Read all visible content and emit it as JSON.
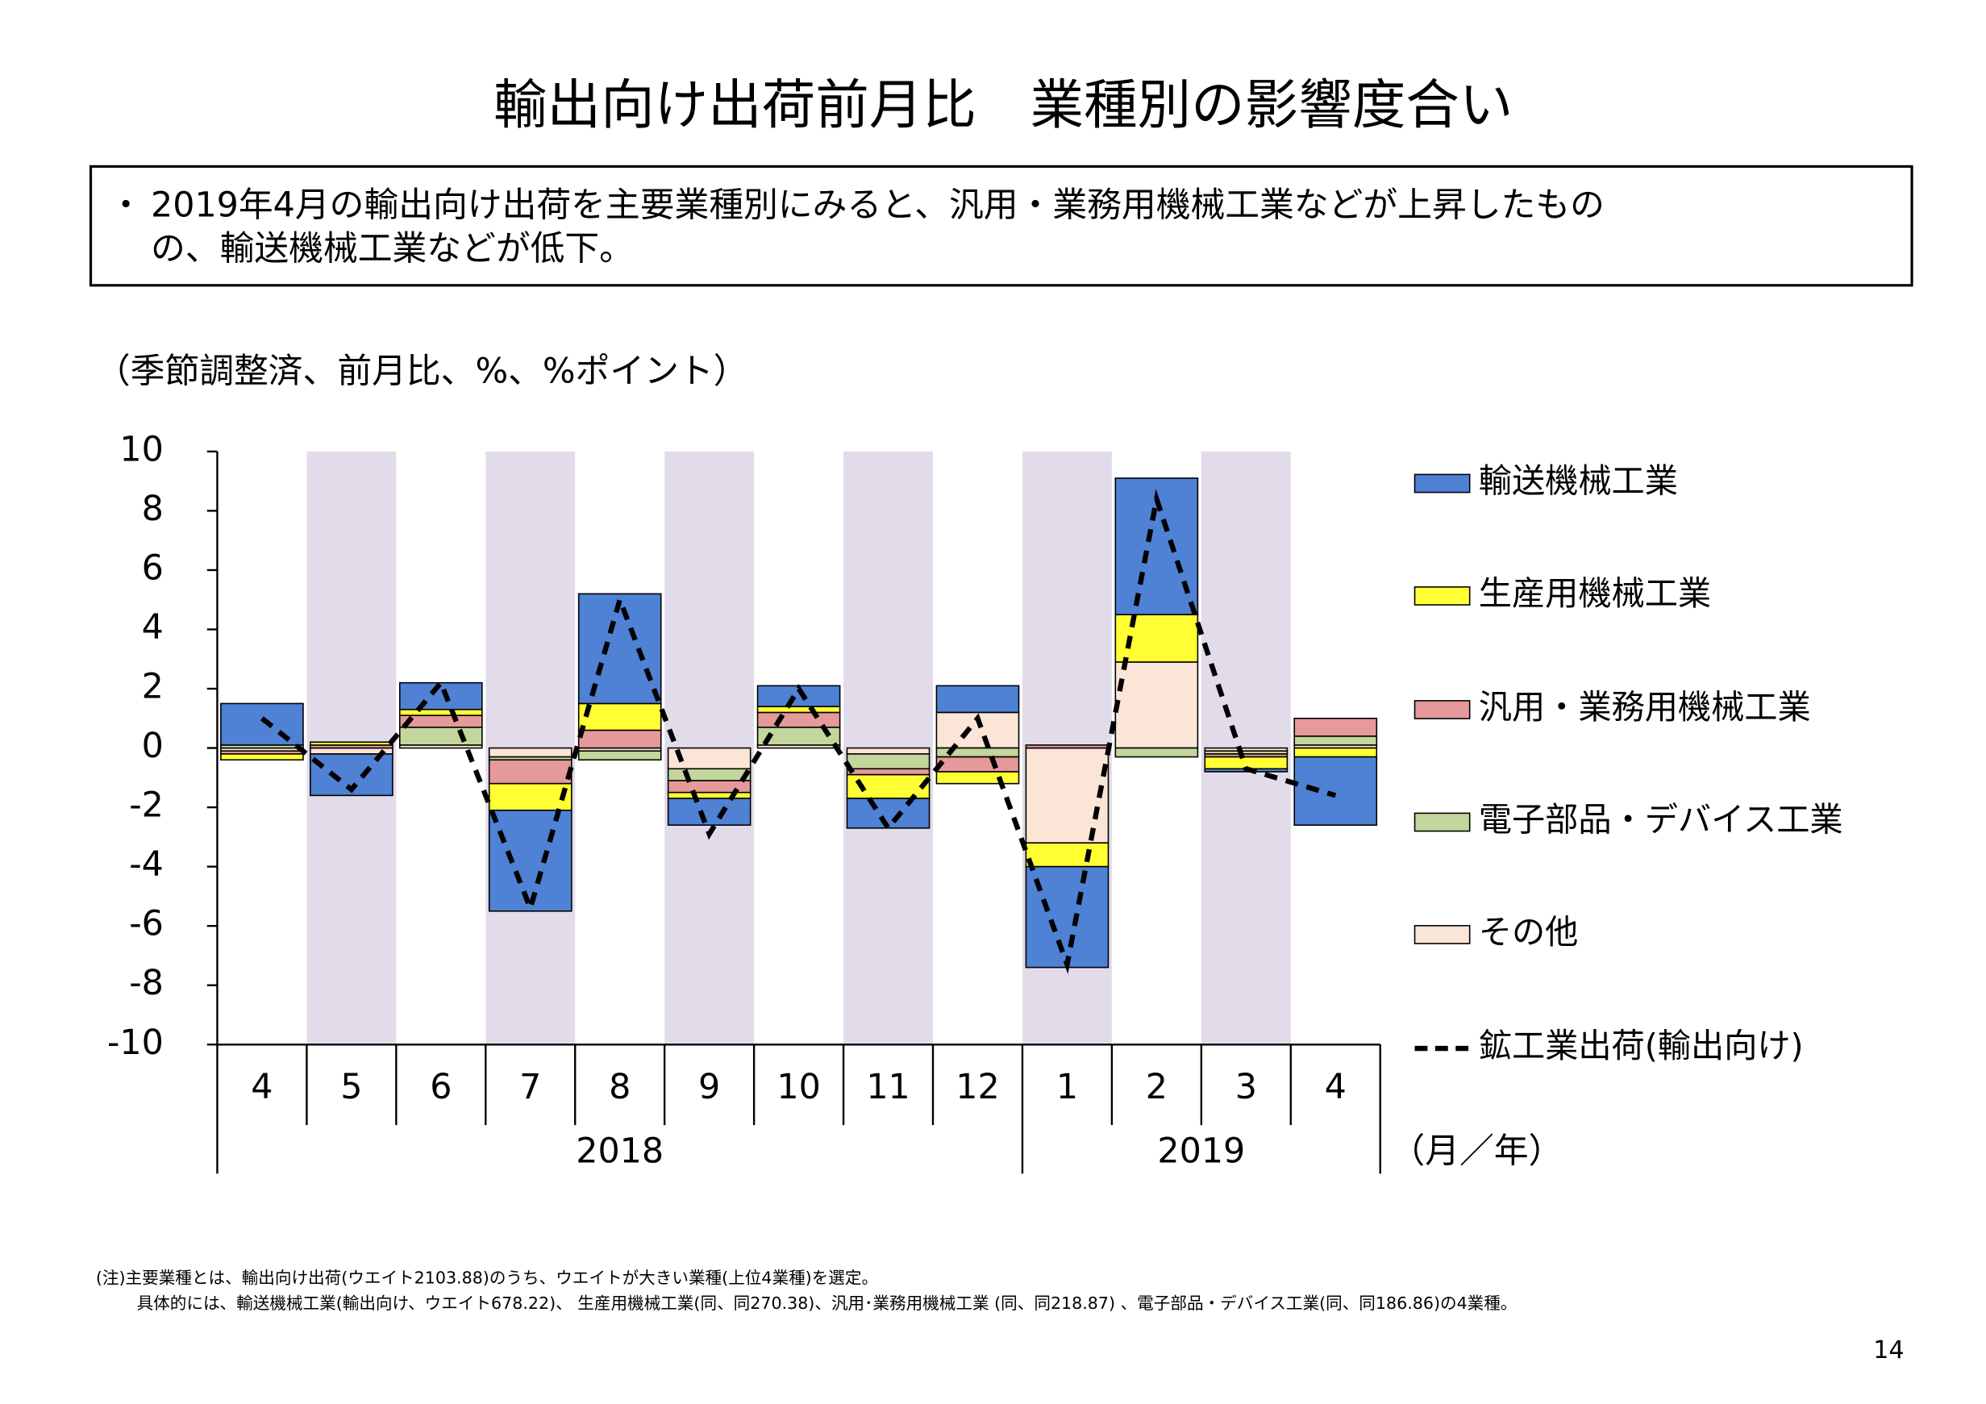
{
  "title": "輸出向け出荷前月比　業種別の影響度合い",
  "summary": {
    "bullet": "・",
    "lines": [
      "2019年4月の輸出向け出荷を主要業種別にみると、汎用・業務用機械工業などが上昇したもの",
      "の、輸送機械工業などが低下。"
    ]
  },
  "chart_data": {
    "type": "bar",
    "unit_note": "（季節調整済、前月比、%、%ポイント）",
    "categories": [
      "4",
      "5",
      "6",
      "7",
      "8",
      "9",
      "10",
      "11",
      "12",
      "1",
      "2",
      "3",
      "4"
    ],
    "years": [
      "2018",
      "2019"
    ],
    "x_unit": "（月／年）",
    "ylim": [
      -10,
      10
    ],
    "yticks": [
      -10,
      -8,
      -6,
      -4,
      -2,
      0,
      2,
      4,
      6,
      8,
      10
    ],
    "band_color": "#e2dcea",
    "series": [
      {
        "name": "輸送機械工業",
        "color": "#4f81d4",
        "values": [
          1.4,
          -1.4,
          0.9,
          -3.4,
          3.7,
          -0.9,
          0.7,
          -1.0,
          0.9,
          -3.4,
          4.6,
          -0.1,
          -2.3
        ]
      },
      {
        "name": "生産用機械工業",
        "color": "#ffff33",
        "values": [
          -0.2,
          0.1,
          0.2,
          -0.9,
          0.9,
          -0.2,
          0.2,
          -0.8,
          -0.4,
          -0.8,
          1.6,
          -0.4,
          -0.3
        ]
      },
      {
        "name": "汎用・業務用機械工業",
        "color": "#e6999a",
        "values": [
          -0.1,
          0.1,
          0.4,
          -0.8,
          0.6,
          -0.4,
          0.5,
          -0.2,
          -0.5,
          0.1,
          0.0,
          -0.1,
          0.6
        ]
      },
      {
        "name": "電子部品・デバイス工業",
        "color": "#c3d69b",
        "values": [
          0.1,
          0.0,
          0.6,
          -0.1,
          -0.3,
          -0.4,
          0.6,
          -0.5,
          -0.3,
          0.0,
          -0.3,
          -0.1,
          0.3
        ]
      },
      {
        "name": "その他",
        "color": "#fbe5d6",
        "values": [
          -0.1,
          -0.2,
          0.1,
          -0.3,
          -0.1,
          -0.7,
          0.1,
          -0.2,
          1.2,
          -3.2,
          2.9,
          -0.1,
          0.1
        ]
      }
    ],
    "line": {
      "name": "鉱工業出荷(輸出向け)",
      "color": "#000000",
      "values": [
        1.0,
        -1.4,
        2.2,
        -5.4,
        5.0,
        -2.9,
        2.0,
        -2.7,
        1.0,
        -7.3,
        8.4,
        -0.7,
        -1.6
      ]
    }
  },
  "footnotes": [
    "(注)主要業種とは、輸出向け出荷(ウエイト2103.88)のうち、ウエイトが大きい業種(上位4業種)を選定。",
    "具体的には、輸送機械工業(輸出向け、ウエイト678.22)、 生産用機械工業(同、同270.38)、汎用･業務用機械工業 (同、同218.87) 、電子部品・デバイス工業(同、同186.86)の4業種。"
  ],
  "page_number": "14"
}
